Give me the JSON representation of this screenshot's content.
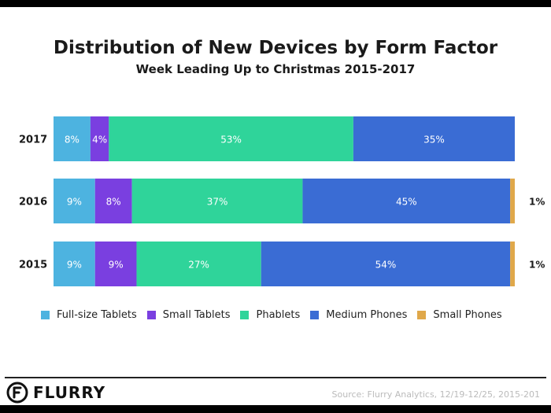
{
  "chart_data": {
    "type": "bar",
    "orientation": "horizontal",
    "stacked": true,
    "title": "Distribution of New Devices by Form Factor",
    "subtitle": "Week Leading Up to Christmas 2015-2017",
    "categories": [
      "2017",
      "2016",
      "2015"
    ],
    "series": [
      {
        "name": "Full-size Tablets",
        "color": "#4db3e0",
        "values": [
          8,
          9,
          9
        ],
        "labels": [
          "8%",
          "9%",
          "9%"
        ]
      },
      {
        "name": "Small Tablets",
        "color": "#7a3fe0",
        "values": [
          4,
          8,
          9
        ],
        "labels": [
          "4%",
          "8%",
          "9%"
        ]
      },
      {
        "name": "Phablets",
        "color": "#2fd49a",
        "values": [
          53,
          37,
          27
        ],
        "labels": [
          "53%",
          "37%",
          "27%"
        ]
      },
      {
        "name": "Medium Phones",
        "color": "#3a6cd4",
        "values": [
          35,
          45,
          54
        ],
        "labels": [
          "35%",
          "45%",
          "54%"
        ]
      },
      {
        "name": "Small Phones",
        "color": "#e0a84a",
        "values": [
          0,
          1,
          1
        ],
        "labels": [
          "",
          "1%",
          "1%"
        ]
      }
    ],
    "xlim": [
      0,
      100
    ],
    "source": "Source: Flurry Analytics, 12/19-12/25, 2015-201"
  },
  "brand": {
    "name": "FLURRY",
    "color": "#111111"
  }
}
